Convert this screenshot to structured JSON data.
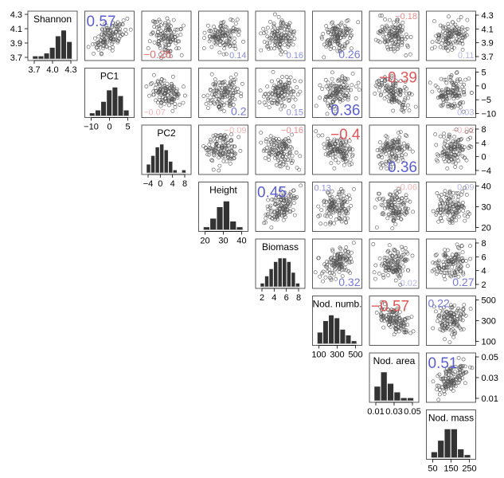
{
  "chart_data": {
    "type": "scatter",
    "matrix_kind": "pairs-plot (histograms on diagonal, scatter upper triangle, correlation labels)",
    "variables": [
      {
        "name": "Shannon",
        "ticks": [
          "3.7",
          "4.0",
          "4.3"
        ],
        "right_ticks": [
          "4.3",
          "4.1",
          "3.9",
          "3.7"
        ],
        "hist": [
          1,
          1,
          2,
          4,
          8,
          10,
          6
        ]
      },
      {
        "name": "PC1",
        "ticks": [
          "−10",
          "0",
          "5"
        ],
        "right_ticks": [
          "5",
          "0",
          "−5",
          "−10"
        ],
        "hist": [
          1,
          2,
          5,
          9,
          10,
          7,
          2
        ]
      },
      {
        "name": "PC2",
        "ticks": [
          "−4",
          "0",
          "4",
          "8"
        ],
        "right_ticks": [
          "8",
          "4",
          "0",
          "−4"
        ],
        "hist": [
          3,
          6,
          9,
          10,
          8,
          4,
          1,
          0,
          1
        ]
      },
      {
        "name": "Height",
        "ticks": [
          "20",
          "30",
          "40"
        ],
        "right_ticks": [
          "40",
          "30",
          "20"
        ],
        "hist": [
          1,
          4,
          8,
          10,
          3,
          1
        ]
      },
      {
        "name": "Biomass",
        "ticks": [
          "2",
          "4",
          "6",
          "8"
        ],
        "right_ticks": [
          "8",
          "6",
          "4",
          "2"
        ],
        "hist": [
          1,
          3,
          5,
          7,
          8,
          8,
          7,
          4,
          1
        ]
      },
      {
        "name": "Nod. numb.",
        "ticks": [
          "100",
          "300",
          "500"
        ],
        "right_ticks": [
          "500",
          "300",
          "100"
        ],
        "hist": [
          4,
          8,
          10,
          9,
          5,
          3,
          1
        ]
      },
      {
        "name": "Nod. area",
        "ticks": [
          "0.01",
          "0.03",
          "0.05"
        ],
        "right_ticks": [
          "0.05",
          "0.03",
          "0.01"
        ],
        "hist": [
          5,
          10,
          6,
          3,
          1,
          1
        ]
      },
      {
        "name": "Nod. mass",
        "ticks": [
          "50",
          "150",
          "250"
        ],
        "right_ticks": [],
        "hist": [
          2,
          6,
          10,
          10,
          3,
          1
        ]
      }
    ],
    "correlations": [
      {
        "row": 0,
        "col": 1,
        "text": "0.57",
        "level": "strong-pos",
        "pos": "tl"
      },
      {
        "row": 0,
        "col": 2,
        "text": "−0.26",
        "level": "mid-neg",
        "pos": "bl"
      },
      {
        "row": 0,
        "col": 3,
        "text": "0.14",
        "level": "weak-pos",
        "pos": "br"
      },
      {
        "row": 0,
        "col": 4,
        "text": "0.16",
        "level": "weak-pos",
        "pos": "br"
      },
      {
        "row": 0,
        "col": 5,
        "text": "0.26",
        "level": "mid-pos",
        "pos": "br"
      },
      {
        "row": 0,
        "col": 6,
        "text": "−0.18",
        "level": "weak-neg",
        "pos": "tr"
      },
      {
        "row": 0,
        "col": 7,
        "text": "0.11",
        "level": "faint-pos",
        "pos": "br"
      },
      {
        "row": 1,
        "col": 2,
        "text": "−0.07",
        "level": "faint-neg",
        "pos": "bl"
      },
      {
        "row": 1,
        "col": 3,
        "text": "0.2",
        "level": "mid-pos",
        "pos": "br"
      },
      {
        "row": 1,
        "col": 4,
        "text": "0.15",
        "level": "weak-pos",
        "pos": "br"
      },
      {
        "row": 1,
        "col": 5,
        "text": "0.36",
        "level": "strong-pos",
        "pos": "br"
      },
      {
        "row": 1,
        "col": 6,
        "text": "−0.39",
        "level": "strong-neg",
        "pos": "tr"
      },
      {
        "row": 1,
        "col": 7,
        "text": "0.03",
        "level": "faint-pos",
        "pos": "br"
      },
      {
        "row": 2,
        "col": 3,
        "text": "−0.09",
        "level": "faint-neg",
        "pos": "tr"
      },
      {
        "row": 2,
        "col": 4,
        "text": "−0.16",
        "level": "weak-neg",
        "pos": "tr"
      },
      {
        "row": 2,
        "col": 5,
        "text": "−0.4",
        "level": "strong-neg",
        "pos": "tr"
      },
      {
        "row": 2,
        "col": 6,
        "text": "0.36",
        "level": "strong-pos",
        "pos": "br"
      },
      {
        "row": 2,
        "col": 7,
        "text": "−0.02",
        "level": "faint-neg",
        "pos": "tr"
      },
      {
        "row": 3,
        "col": 4,
        "text": "0.45",
        "level": "strong-pos",
        "pos": "tl"
      },
      {
        "row": 3,
        "col": 5,
        "text": "0.13",
        "level": "weak-pos",
        "pos": "tl"
      },
      {
        "row": 3,
        "col": 6,
        "text": "−0.06",
        "level": "faint-neg",
        "pos": "tr"
      },
      {
        "row": 3,
        "col": 7,
        "text": "0.09",
        "level": "faint-pos",
        "pos": "tr"
      },
      {
        "row": 4,
        "col": 5,
        "text": "0.32",
        "level": "mid-pos",
        "pos": "br"
      },
      {
        "row": 4,
        "col": 6,
        "text": "0.02",
        "level": "faint-pos",
        "pos": "br"
      },
      {
        "row": 4,
        "col": 7,
        "text": "0.27",
        "level": "mid-pos",
        "pos": "br"
      },
      {
        "row": 5,
        "col": 6,
        "text": "−0.57",
        "level": "strong-neg",
        "pos": "tl"
      },
      {
        "row": 5,
        "col": 7,
        "text": "0.22",
        "level": "mid-pos",
        "pos": "tl"
      },
      {
        "row": 6,
        "col": 7,
        "text": "0.51",
        "level": "strong-pos",
        "pos": "tl"
      }
    ],
    "grid": false
  },
  "style": {
    "positive_color": "#5a5ed0",
    "negative_color": "#e0575a",
    "point_color": "#555555",
    "bar_color": "#333333"
  }
}
